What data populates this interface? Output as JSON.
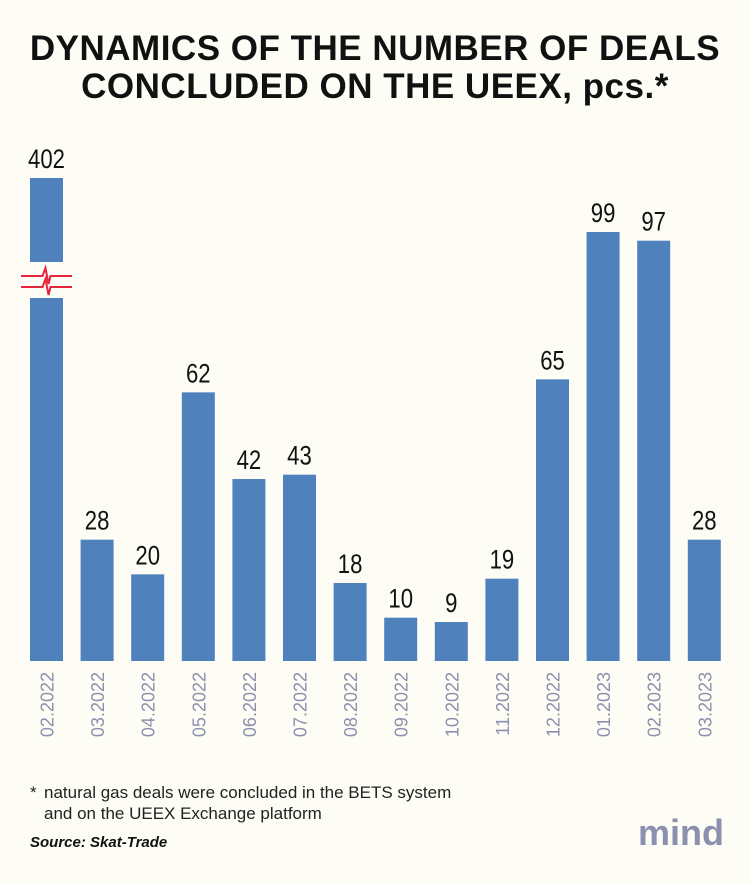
{
  "title_lines": [
    "DYNAMICS OF THE NUMBER OF DEALS",
    "CONCLUDED ON THE UEEX, pcs.*"
  ],
  "chart_data": {
    "type": "bar",
    "title": "DYNAMICS OF THE NUMBER OF DEALS CONCLUDED ON THE UEEX, pcs.*",
    "categories": [
      "02.2022",
      "03.2022",
      "04.2022",
      "05.2022",
      "06.2022",
      "07.2022",
      "08.2022",
      "09.2022",
      "10.2022",
      "11.2022",
      "12.2022",
      "01.2023",
      "02.2023",
      "03.2023"
    ],
    "values": [
      402,
      28,
      20,
      62,
      42,
      43,
      18,
      10,
      9,
      19,
      65,
      99,
      97,
      28
    ],
    "axis_break": {
      "bar": "02.2022"
    },
    "grid": false,
    "colors": {
      "bar": "#4f81bd",
      "break": "#e8243c",
      "tick_label": "#8a90ad"
    }
  },
  "footnote": {
    "marker": "*",
    "lines": [
      "natural gas deals were concluded in the BETS system",
      "and on the UEEX Exchange platform"
    ]
  },
  "source": "Source: Skat-Trade",
  "logo": "mind"
}
